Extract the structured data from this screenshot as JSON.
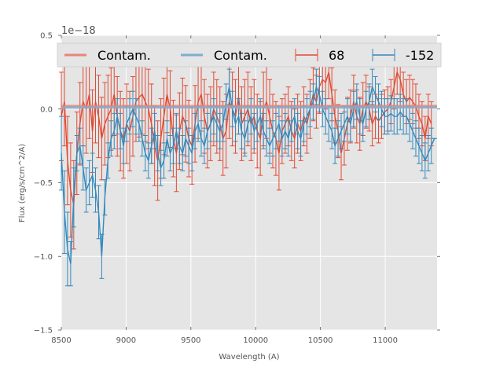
{
  "chart_data": {
    "type": "line",
    "title": "",
    "xlabel": "Wavelength (A)",
    "ylabel": "Flux (erg/s/cm^2/A)",
    "y_offset_text": "1e−18",
    "xlim": [
      8500,
      11400
    ],
    "ylim": [
      -1.5,
      0.5
    ],
    "x_ticks": [
      8500,
      9000,
      9500,
      10000,
      10500,
      11000
    ],
    "x_tick_labels": [
      "8500",
      "9000",
      "9500",
      "10000",
      "10500",
      "11000"
    ],
    "y_ticks": [
      0.5,
      0.0,
      -0.5,
      -1.0,
      -1.5
    ],
    "y_tick_labels": [
      "0.5",
      "0.0",
      "−0.5",
      "−1.0",
      "−1.5"
    ],
    "grid": true,
    "style": "ggplot",
    "legend": {
      "placement": "top",
      "columns": 4,
      "entries": [
        {
          "label": "Contam.",
          "kind": "line",
          "color": "#e8847a"
        },
        {
          "label": "Contam.",
          "kind": "line",
          "color": "#7fadd0"
        },
        {
          "label": "68",
          "kind": "errorbar",
          "color": "#e24a33"
        },
        {
          "label": "-152",
          "kind": "errorbar",
          "color": "#348abd"
        }
      ]
    },
    "x_start": 8500,
    "x_step": 24,
    "series": [
      {
        "name": "Contam.",
        "kind": "line",
        "color": "#e8847a",
        "values_constant": 0.02
      },
      {
        "name": "Contam.",
        "kind": "line",
        "color": "#7fadd0",
        "values_constant": 0.01
      },
      {
        "name": "68",
        "kind": "errorbar",
        "color": "#e24a33",
        "values": [
          -0.05,
          0.05,
          -0.35,
          -0.55,
          -0.65,
          -0.3,
          -0.1,
          0.05,
          0.0,
          0.1,
          -0.15,
          0.05,
          -0.05,
          -0.2,
          -0.1,
          -0.05,
          0.0,
          0.1,
          -0.05,
          -0.15,
          -0.2,
          -0.1,
          -0.15,
          -0.05,
          0.05,
          0.08,
          0.1,
          0.05,
          0.0,
          -0.1,
          -0.25,
          -0.35,
          -0.2,
          -0.05,
          0.1,
          0.0,
          -0.2,
          -0.3,
          -0.15,
          -0.05,
          -0.1,
          -0.2,
          -0.25,
          -0.1,
          0.05,
          0.1,
          -0.05,
          -0.15,
          -0.1,
          0.0,
          -0.05,
          -0.1,
          -0.2,
          -0.15,
          0.05,
          0.0,
          -0.05,
          0.08,
          -0.1,
          -0.05,
          0.0,
          -0.1,
          -0.05,
          -0.15,
          -0.2,
          0.0,
          0.05,
          -0.05,
          -0.15,
          -0.2,
          -0.3,
          -0.15,
          -0.1,
          -0.05,
          -0.15,
          -0.2,
          -0.1,
          -0.15,
          -0.05,
          -0.1,
          0.0,
          0.1,
          0.05,
          0.15,
          0.2,
          0.18,
          0.25,
          0.1,
          -0.05,
          -0.15,
          -0.3,
          -0.2,
          -0.1,
          -0.05,
          0.05,
          -0.05,
          -0.1,
          0.0,
          0.05,
          0.0,
          -0.1,
          -0.05,
          -0.08,
          -0.05,
          -0.02,
          0.0,
          0.05,
          0.15,
          0.25,
          0.2,
          0.1,
          0.05,
          0.08,
          0.05,
          0.02,
          -0.05,
          -0.1,
          -0.2,
          -0.05,
          -0.1
        ],
        "errors": [
          0.3,
          0.3,
          0.3,
          0.32,
          0.3,
          0.28,
          0.28,
          0.3,
          0.3,
          0.3,
          0.28,
          0.28,
          0.28,
          0.28,
          0.28,
          0.28,
          0.28,
          0.28,
          0.27,
          0.27,
          0.27,
          0.27,
          0.27,
          0.27,
          0.27,
          0.27,
          0.27,
          0.27,
          0.27,
          0.27,
          0.27,
          0.27,
          0.27,
          0.26,
          0.26,
          0.26,
          0.26,
          0.26,
          0.26,
          0.26,
          0.26,
          0.26,
          0.26,
          0.26,
          0.25,
          0.25,
          0.25,
          0.25,
          0.25,
          0.25,
          0.25,
          0.25,
          0.25,
          0.25,
          0.25,
          0.25,
          0.25,
          0.25,
          0.25,
          0.25,
          0.25,
          0.25,
          0.25,
          0.25,
          0.25,
          0.25,
          0.25,
          0.25,
          0.25,
          0.25,
          0.25,
          0.22,
          0.2,
          0.2,
          0.2,
          0.2,
          0.2,
          0.2,
          0.2,
          0.2,
          0.2,
          0.18,
          0.18,
          0.18,
          0.18,
          0.18,
          0.18,
          0.18,
          0.18,
          0.18,
          0.18,
          0.18,
          0.18,
          0.18,
          0.18,
          0.18,
          0.18,
          0.18,
          0.18,
          0.15,
          0.15,
          0.15,
          0.15,
          0.15,
          0.15,
          0.15,
          0.15,
          0.15,
          0.15,
          0.15,
          0.15,
          0.15,
          0.15,
          0.15,
          0.15,
          0.15,
          0.15,
          0.15,
          0.15,
          0.15
        ]
      },
      {
        "name": "-152",
        "kind": "errorbar",
        "color": "#348abd",
        "values": [
          -0.3,
          -0.7,
          -0.95,
          -1.05,
          -0.6,
          -0.3,
          -0.25,
          -0.4,
          -0.55,
          -0.5,
          -0.45,
          -0.55,
          -0.7,
          -1.0,
          -0.6,
          -0.35,
          -0.2,
          -0.15,
          -0.05,
          -0.15,
          -0.25,
          -0.1,
          -0.05,
          0.0,
          -0.05,
          -0.1,
          -0.2,
          -0.3,
          -0.35,
          -0.25,
          -0.15,
          -0.3,
          -0.4,
          -0.35,
          -0.2,
          -0.3,
          -0.25,
          -0.15,
          -0.25,
          -0.3,
          -0.2,
          -0.25,
          -0.3,
          -0.15,
          -0.1,
          -0.2,
          -0.25,
          -0.15,
          -0.1,
          -0.05,
          -0.1,
          -0.15,
          -0.1,
          0.05,
          0.15,
          0.0,
          -0.1,
          -0.05,
          -0.15,
          -0.2,
          -0.1,
          -0.05,
          -0.15,
          -0.1,
          -0.05,
          -0.15,
          -0.2,
          -0.25,
          -0.2,
          -0.15,
          -0.1,
          -0.2,
          -0.15,
          -0.2,
          -0.1,
          -0.05,
          -0.15,
          -0.2,
          -0.1,
          -0.05,
          0.0,
          0.05,
          0.15,
          0.1,
          0.0,
          -0.05,
          -0.1,
          -0.15,
          -0.25,
          -0.2,
          -0.15,
          -0.1,
          -0.05,
          -0.1,
          0.0,
          0.05,
          -0.05,
          -0.1,
          0.0,
          0.05,
          0.15,
          0.1,
          0.05,
          0.0,
          -0.05,
          -0.05,
          -0.03,
          -0.05,
          -0.05,
          -0.02,
          -0.05,
          -0.05,
          -0.1,
          -0.15,
          -0.2,
          -0.25,
          -0.3,
          -0.35,
          -0.3,
          -0.25,
          -0.2,
          -0.1
        ],
        "errors": [
          0.25,
          0.28,
          0.25,
          0.15,
          0.2,
          0.12,
          0.12,
          0.15,
          0.15,
          0.15,
          0.15,
          0.15,
          0.18,
          0.15,
          0.12,
          0.12,
          0.12,
          0.12,
          0.12,
          0.12,
          0.12,
          0.12,
          0.12,
          0.12,
          0.12,
          0.12,
          0.12,
          0.12,
          0.12,
          0.12,
          0.12,
          0.12,
          0.12,
          0.12,
          0.12,
          0.12,
          0.12,
          0.12,
          0.12,
          0.12,
          0.12,
          0.12,
          0.12,
          0.12,
          0.12,
          0.12,
          0.12,
          0.12,
          0.12,
          0.12,
          0.12,
          0.12,
          0.12,
          0.12,
          0.12,
          0.12,
          0.12,
          0.12,
          0.12,
          0.12,
          0.12,
          0.12,
          0.12,
          0.12,
          0.12,
          0.12,
          0.12,
          0.12,
          0.12,
          0.12,
          0.12,
          0.12,
          0.12,
          0.12,
          0.12,
          0.12,
          0.12,
          0.12,
          0.12,
          0.12,
          0.12,
          0.12,
          0.12,
          0.12,
          0.12,
          0.12,
          0.12,
          0.12,
          0.12,
          0.12,
          0.12,
          0.12,
          0.12,
          0.12,
          0.12,
          0.12,
          0.12,
          0.12,
          0.12,
          0.12,
          0.12,
          0.12,
          0.12,
          0.12,
          0.12,
          0.12,
          0.12,
          0.12,
          0.12,
          0.12,
          0.12,
          0.12,
          0.12,
          0.12,
          0.12,
          0.12,
          0.12,
          0.12,
          0.12,
          0.12
        ]
      }
    ]
  }
}
